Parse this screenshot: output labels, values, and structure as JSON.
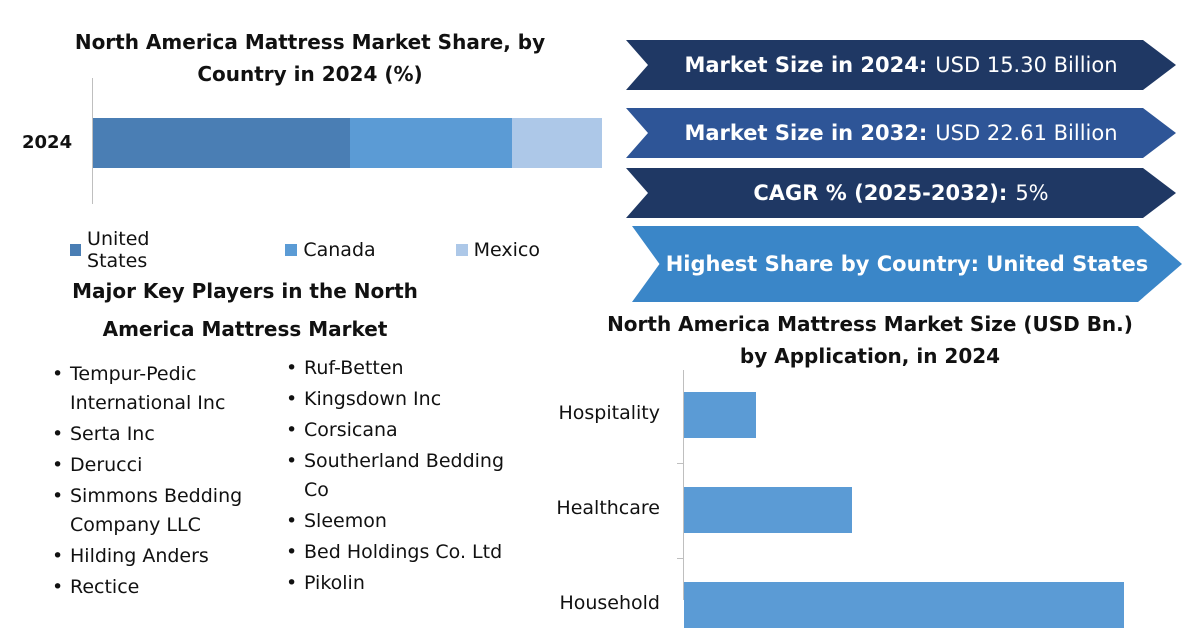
{
  "share_chart": {
    "title": "North America Mattress Market Share, by Country in 2024 (%)",
    "category": "2024",
    "legend": [
      "United States",
      "Canada",
      "Mexico"
    ]
  },
  "banners": {
    "b1_label": "Market Size in 2024:",
    "b1_value": "USD 15.30 Billion",
    "b2_label": "Market Size in 2032:",
    "b2_value": "USD 22.61 Billion",
    "b3_label": "CAGR % (2025-2032):",
    "b3_value": "5%",
    "b4_text": "Highest Share by Country: United States",
    "colors": [
      "#1f3864",
      "#2e5597",
      "#1f3864",
      "#3a86c8"
    ]
  },
  "players": {
    "title": "Major Key Players in the North America Mattress Market",
    "left": [
      "Tempur-Pedic International Inc",
      "Serta Inc",
      "Derucci",
      "Simmons Bedding Company LLC",
      "Hilding Anders",
      "Rectice"
    ],
    "right": [
      "Ruf-Betten",
      "Kingsdown Inc",
      "Corsicana",
      "Southerland Bedding Co",
      "Sleemon",
      "Bed Holdings Co. Ltd",
      "Pikolin"
    ]
  },
  "app_chart": {
    "title": "North America Mattress Market Size (USD Bn.) by Application, in 2024",
    "categories": [
      "Hospitality",
      "Healthcare",
      "Household"
    ]
  },
  "chart_data": [
    {
      "type": "bar",
      "orientation": "horizontal-stacked",
      "title": "North America Mattress Market Share, by Country in 2024 (%)",
      "categories": [
        "2024"
      ],
      "series": [
        {
          "name": "United States",
          "values": [
            50.5
          ],
          "color": "#4a7eb4"
        },
        {
          "name": "Canada",
          "values": [
            31.8
          ],
          "color": "#5b9bd5"
        },
        {
          "name": "Mexico",
          "values": [
            17.7
          ],
          "color": "#adc8e8"
        }
      ],
      "xlim": [
        0,
        100
      ],
      "legend": "bottom",
      "grid": false
    },
    {
      "type": "bar",
      "orientation": "horizontal",
      "title": "North America Mattress Market Size (USD Bn.) by Application, in 2024",
      "categories": [
        "Hospitality",
        "Healthcare",
        "Household"
      ],
      "values": [
        0.9,
        2.1,
        5.5
      ],
      "xlim": [
        0,
        6
      ],
      "color": "#5b9bd5",
      "grid": false
    }
  ]
}
